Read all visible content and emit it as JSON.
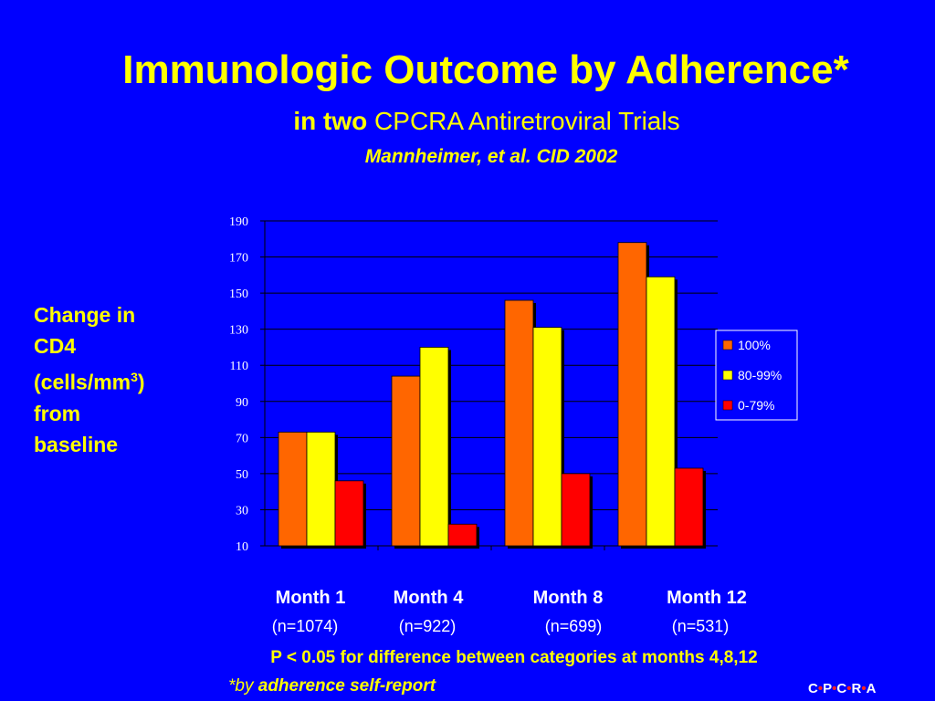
{
  "header": {
    "title": "Immunologic Outcome by Adherence*",
    "subtitle_bold": "in two",
    "subtitle_rest": " CPCRA Antiretroviral Trials",
    "citation": "Mannheimer, et al. CID 2002"
  },
  "y_axis_label": {
    "line1": "Change in",
    "line2": "CD4",
    "line3_pre": "(cells/mm",
    "line3_sup": "3",
    "line3_post": ")",
    "line4": "from",
    "line5": "baseline"
  },
  "chart_data": {
    "type": "bar",
    "categories": [
      "Month 1",
      "Month 4",
      "Month 8",
      "Month 12"
    ],
    "category_n": [
      "(n=1074)",
      "(n=922)",
      "(n=699)",
      "(n=531)"
    ],
    "series": [
      {
        "name": "100%",
        "values": [
          73,
          104,
          146,
          178
        ]
      },
      {
        "name": "80-99%",
        "values": [
          73,
          120,
          131,
          159
        ]
      },
      {
        "name": "0-79%",
        "values": [
          46,
          22,
          50,
          53
        ]
      }
    ],
    "ylim": [
      10,
      190
    ],
    "yticks": [
      10,
      30,
      50,
      70,
      90,
      110,
      130,
      150,
      170,
      190
    ],
    "grid": true,
    "legend_position": "right"
  },
  "colors": {
    "series": [
      "#ff6600",
      "#ffff00",
      "#ff0000"
    ],
    "background": "#0000ff",
    "text": "#ffff00",
    "logo_dot": "#ff2020"
  },
  "footer": {
    "p_note": "P < 0.05 for difference between categories at  months 4,8,12",
    "footnote_star_by": "*by",
    "footnote_rest": " adherence self-report",
    "logo_letters": [
      "C",
      "P",
      "C",
      "R",
      "A"
    ]
  }
}
